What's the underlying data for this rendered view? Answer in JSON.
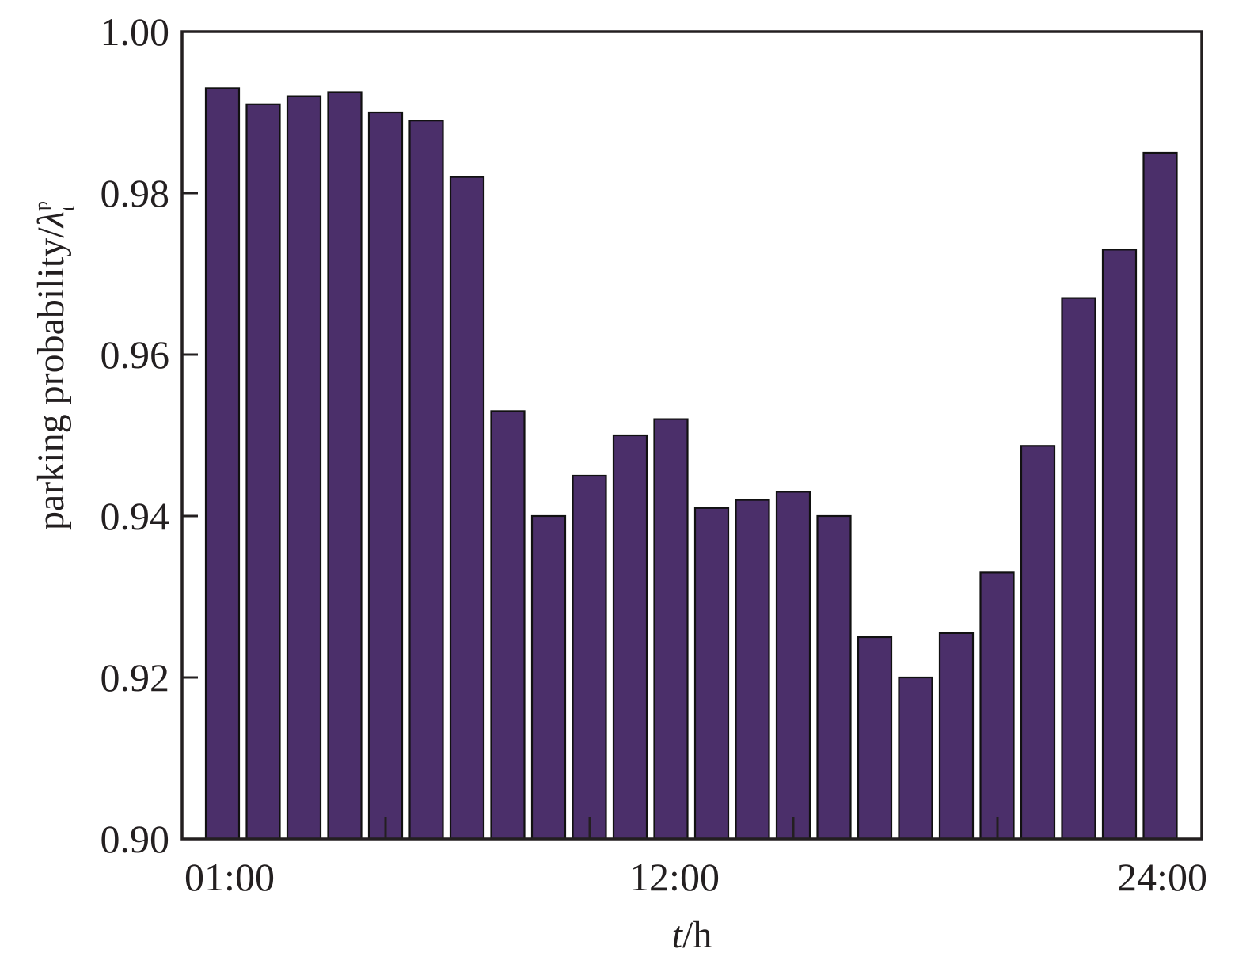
{
  "chart_data": {
    "type": "bar",
    "title": "",
    "xlabel": {
      "var": "t",
      "unit": "/h"
    },
    "ylabel": {
      "text": "parking probability/",
      "symbol": "λ",
      "sub": "t",
      "sup": "p"
    },
    "ylim": [
      0.9,
      1.0
    ],
    "yticks": [
      "0.90",
      "0.92",
      "0.94",
      "0.96",
      "0.98",
      "1.00"
    ],
    "x_tick_labels": [
      "01:00",
      "12:00",
      "24:00"
    ],
    "categories": [
      "01:00",
      "02:00",
      "03:00",
      "04:00",
      "05:00",
      "06:00",
      "07:00",
      "08:00",
      "09:00",
      "10:00",
      "11:00",
      "12:00",
      "13:00",
      "14:00",
      "15:00",
      "16:00",
      "17:00",
      "18:00",
      "19:00",
      "20:00",
      "21:00",
      "22:00",
      "23:00",
      "24:00"
    ],
    "values": [
      0.993,
      0.991,
      0.992,
      0.9925,
      0.99,
      0.989,
      0.982,
      0.953,
      0.94,
      0.945,
      0.95,
      0.952,
      0.941,
      0.942,
      0.943,
      0.94,
      0.925,
      0.92,
      0.9255,
      0.933,
      0.9487,
      0.967,
      0.973,
      0.985
    ],
    "bar_color": "#4b2f6a",
    "grid": false,
    "legend": "none"
  }
}
